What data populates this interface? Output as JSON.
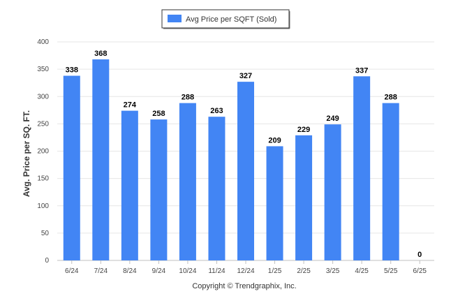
{
  "chart_data": {
    "type": "bar",
    "categories": [
      "6/24",
      "7/24",
      "8/24",
      "9/24",
      "10/24",
      "11/24",
      "12/24",
      "1/25",
      "2/25",
      "3/25",
      "4/25",
      "5/25",
      "6/25"
    ],
    "series": [
      {
        "name": "Avg Price per SQFT (Sold)",
        "values": [
          338,
          368,
          274,
          258,
          288,
          263,
          327,
          209,
          229,
          249,
          337,
          288,
          0
        ],
        "color": "#4285f4"
      }
    ],
    "xlabel": "",
    "ylabel": "Avg. Price per SQ. FT.",
    "ylim": [
      0,
      400
    ],
    "yticks": [
      0,
      50,
      100,
      150,
      200,
      250,
      300,
      350,
      400
    ],
    "grid": true,
    "legend_position": "top-center",
    "data_labels": true
  },
  "footer": {
    "copyright": "Copyright © Trendgraphix, Inc."
  }
}
